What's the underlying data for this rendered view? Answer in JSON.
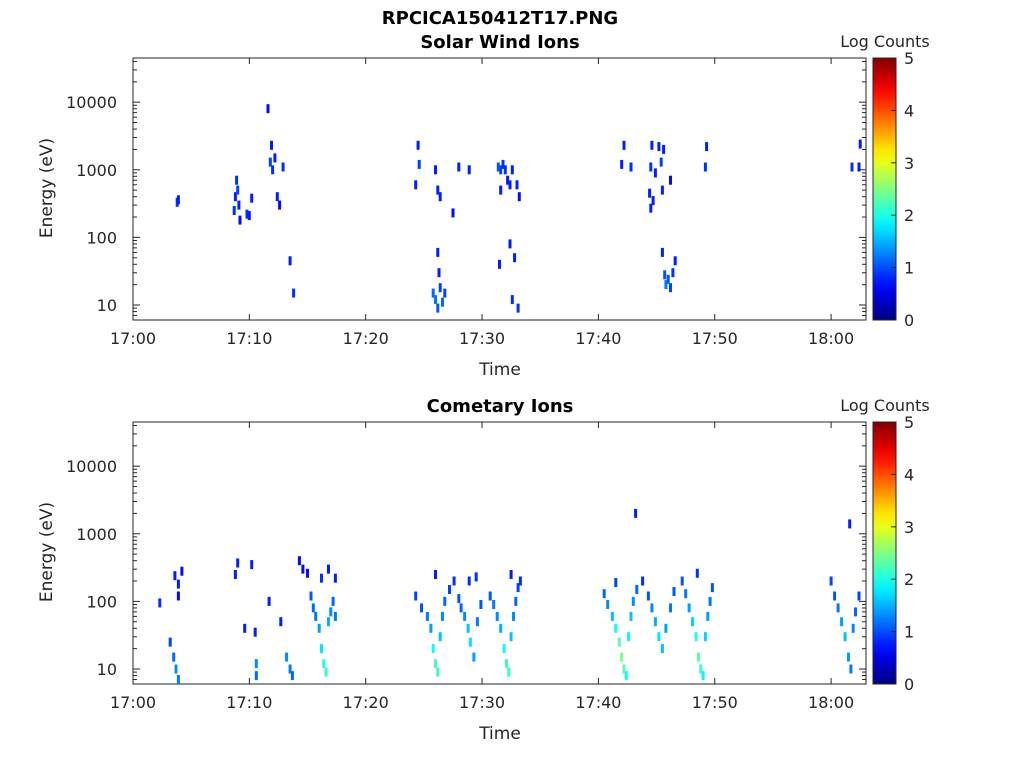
{
  "figure": {
    "title": "RPCICA150412T17.PNG",
    "colors": {
      "axis": "#262626",
      "background": "#ffffff",
      "colormap": "jet"
    }
  },
  "chart_data": [
    {
      "type": "heatmap",
      "title": "Solar Wind Ions",
      "xlabel": "Time",
      "ylabel": "Energy (eV)",
      "colorbar_label": "Log Counts",
      "x_tick_labels": [
        "17:00",
        "17:10",
        "17:20",
        "17:30",
        "17:40",
        "17:50",
        "18:00"
      ],
      "y_tick_labels": [
        "10",
        "100",
        "1000",
        "10000"
      ],
      "colorbar_ticks": [
        "0",
        "1",
        "2",
        "3",
        "4",
        "5"
      ],
      "y_scale": "log",
      "ylim": [
        6,
        45000
      ],
      "xlim_minutes_after_17_00": [
        0,
        63
      ],
      "clim": [
        0,
        5
      ],
      "cells": [
        [
          3.8,
          330,
          0.4
        ],
        [
          3.9,
          360,
          0.3
        ],
        [
          8.7,
          250,
          0.4
        ],
        [
          8.8,
          400,
          0.3
        ],
        [
          8.9,
          700,
          0.4
        ],
        [
          9.0,
          500,
          0.5
        ],
        [
          9.1,
          300,
          0.3
        ],
        [
          9.2,
          180,
          0.2
        ],
        [
          9.8,
          220,
          0.4
        ],
        [
          10.0,
          210,
          0.3
        ],
        [
          10.2,
          380,
          0.3
        ],
        [
          11.6,
          8000,
          0.2
        ],
        [
          11.8,
          1300,
          0.5
        ],
        [
          11.9,
          2300,
          0.3
        ],
        [
          12.0,
          1000,
          0.4
        ],
        [
          12.2,
          1500,
          0.3
        ],
        [
          12.4,
          400,
          0.3
        ],
        [
          12.6,
          300,
          0.2
        ],
        [
          12.9,
          1100,
          0.4
        ],
        [
          13.5,
          45,
          0.3
        ],
        [
          13.8,
          15,
          0.4
        ],
        [
          24.3,
          600,
          0.3
        ],
        [
          24.5,
          2300,
          0.3
        ],
        [
          24.6,
          1200,
          0.5
        ],
        [
          26.0,
          1000,
          0.3
        ],
        [
          26.2,
          500,
          0.3
        ],
        [
          26.4,
          400,
          0.3
        ],
        [
          27.5,
          230,
          0.2
        ],
        [
          28.0,
          1100,
          0.3
        ],
        [
          28.9,
          1000,
          0.3
        ],
        [
          25.8,
          15,
          0.7
        ],
        [
          26.0,
          12,
          0.8
        ],
        [
          26.2,
          9,
          0.6
        ],
        [
          26.4,
          18,
          0.5
        ],
        [
          26.6,
          11,
          0.7
        ],
        [
          26.8,
          15,
          0.5
        ],
        [
          26.2,
          60,
          0.3
        ],
        [
          26.3,
          30,
          0.3
        ],
        [
          31.4,
          1100,
          0.6
        ],
        [
          31.6,
          1000,
          0.5
        ],
        [
          31.8,
          1200,
          0.4
        ],
        [
          32.0,
          1000,
          0.4
        ],
        [
          32.2,
          700,
          0.3
        ],
        [
          31.6,
          500,
          0.3
        ],
        [
          32.4,
          600,
          0.3
        ],
        [
          32.6,
          1000,
          0.3
        ],
        [
          33.0,
          600,
          0.3
        ],
        [
          33.2,
          400,
          0.2
        ],
        [
          31.5,
          40,
          0.3
        ],
        [
          32.4,
          80,
          0.3
        ],
        [
          32.8,
          50,
          0.3
        ],
        [
          32.6,
          12,
          0.4
        ],
        [
          33.1,
          9,
          0.4
        ],
        [
          42.0,
          1200,
          0.3
        ],
        [
          42.2,
          2300,
          0.3
        ],
        [
          42.8,
          1100,
          0.4
        ],
        [
          44.5,
          1100,
          0.4
        ],
        [
          44.6,
          2300,
          0.3
        ],
        [
          45.2,
          2200,
          0.3
        ],
        [
          45.4,
          1300,
          0.5
        ],
        [
          45.6,
          2000,
          0.3
        ],
        [
          44.9,
          900,
          0.3
        ],
        [
          45.5,
          500,
          0.3
        ],
        [
          46.2,
          700,
          0.2
        ],
        [
          44.4,
          450,
          0.3
        ],
        [
          44.5,
          270,
          0.3
        ],
        [
          44.7,
          350,
          0.3
        ],
        [
          45.5,
          60,
          0.3
        ],
        [
          45.7,
          28,
          0.6
        ],
        [
          45.8,
          20,
          0.8
        ],
        [
          46.0,
          24,
          0.6
        ],
        [
          46.2,
          18,
          0.5
        ],
        [
          46.4,
          30,
          0.4
        ],
        [
          46.6,
          45,
          0.3
        ],
        [
          49.2,
          1100,
          0.4
        ],
        [
          49.3,
          2200,
          0.3
        ],
        [
          61.8,
          1100,
          0.4
        ],
        [
          62.4,
          1100,
          0.3
        ],
        [
          62.5,
          2400,
          0.3
        ]
      ]
    },
    {
      "type": "heatmap",
      "title": "Cometary Ions",
      "xlabel": "Time",
      "ylabel": "Energy (eV)",
      "colorbar_label": "Log Counts",
      "x_tick_labels": [
        "17:00",
        "17:10",
        "17:20",
        "17:30",
        "17:40",
        "17:50",
        "18:00"
      ],
      "y_tick_labels": [
        "10",
        "100",
        "1000",
        "10000"
      ],
      "colorbar_ticks": [
        "0",
        "1",
        "2",
        "3",
        "4",
        "5"
      ],
      "y_scale": "log",
      "ylim": [
        6,
        45000
      ],
      "xlim_minutes_after_17_00": [
        0,
        63
      ],
      "clim": [
        0,
        5
      ],
      "cells": [
        [
          2.3,
          95,
          0.4
        ],
        [
          3.6,
          240,
          0.3
        ],
        [
          3.9,
          180,
          0.3
        ],
        [
          4.2,
          280,
          0.2
        ],
        [
          3.9,
          120,
          0.2
        ],
        [
          3.2,
          25,
          0.5
        ],
        [
          3.5,
          15,
          0.7
        ],
        [
          3.7,
          10,
          0.9
        ],
        [
          3.9,
          7,
          0.8
        ],
        [
          8.8,
          250,
          0.3
        ],
        [
          9.0,
          370,
          0.3
        ],
        [
          10.2,
          350,
          0.3
        ],
        [
          9.6,
          40,
          0.3
        ],
        [
          10.5,
          35,
          0.3
        ],
        [
          10.6,
          12,
          0.9
        ],
        [
          10.6,
          8,
          0.7
        ],
        [
          11.7,
          100,
          0.3
        ],
        [
          12.7,
          50,
          0.3
        ],
        [
          13.2,
          15,
          0.9
        ],
        [
          13.5,
          10,
          0.8
        ],
        [
          13.7,
          8,
          0.7
        ],
        [
          14.3,
          400,
          0.2
        ],
        [
          14.6,
          300,
          0.2
        ],
        [
          15.0,
          260,
          0.2
        ],
        [
          15.3,
          120,
          0.6
        ],
        [
          15.5,
          80,
          0.7
        ],
        [
          15.7,
          60,
          0.8
        ],
        [
          16.0,
          40,
          1.0
        ],
        [
          16.2,
          20,
          1.4
        ],
        [
          16.4,
          12,
          1.7
        ],
        [
          16.6,
          9,
          1.8
        ],
        [
          16.8,
          50,
          1.1
        ],
        [
          17.0,
          70,
          0.9
        ],
        [
          17.2,
          100,
          0.7
        ],
        [
          17.4,
          60,
          0.8
        ],
        [
          16.2,
          220,
          0.4
        ],
        [
          16.8,
          300,
          0.3
        ],
        [
          17.4,
          220,
          0.3
        ],
        [
          24.3,
          120,
          0.5
        ],
        [
          24.8,
          80,
          0.6
        ],
        [
          25.3,
          60,
          0.8
        ],
        [
          25.6,
          40,
          1.0
        ],
        [
          25.8,
          20,
          1.6
        ],
        [
          26.0,
          12,
          1.9
        ],
        [
          26.2,
          9,
          1.8
        ],
        [
          26.4,
          30,
          1.2
        ],
        [
          26.6,
          60,
          0.9
        ],
        [
          26.8,
          100,
          0.7
        ],
        [
          27.2,
          150,
          0.5
        ],
        [
          27.6,
          200,
          0.4
        ],
        [
          26.0,
          250,
          0.3
        ],
        [
          28.0,
          110,
          0.6
        ],
        [
          28.2,
          80,
          0.7
        ],
        [
          28.5,
          60,
          0.9
        ],
        [
          28.8,
          40,
          1.2
        ],
        [
          29.0,
          25,
          1.4
        ],
        [
          29.3,
          15,
          1.0
        ],
        [
          29.6,
          50,
          0.8
        ],
        [
          29.9,
          90,
          0.6
        ],
        [
          28.9,
          200,
          0.4
        ],
        [
          29.5,
          230,
          0.4
        ],
        [
          30.7,
          120,
          0.6
        ],
        [
          31.0,
          90,
          0.8
        ],
        [
          31.3,
          60,
          0.9
        ],
        [
          31.6,
          40,
          1.1
        ],
        [
          31.9,
          20,
          1.6
        ],
        [
          32.1,
          12,
          1.9
        ],
        [
          32.3,
          9,
          1.8
        ],
        [
          32.5,
          30,
          1.2
        ],
        [
          32.7,
          60,
          0.9
        ],
        [
          32.9,
          100,
          0.7
        ],
        [
          33.1,
          160,
          0.5
        ],
        [
          33.3,
          200,
          0.4
        ],
        [
          32.5,
          250,
          0.3
        ],
        [
          40.5,
          130,
          0.7
        ],
        [
          40.8,
          90,
          0.9
        ],
        [
          41.2,
          60,
          1.2
        ],
        [
          41.5,
          40,
          1.6
        ],
        [
          41.8,
          25,
          2.0
        ],
        [
          42.0,
          15,
          2.2
        ],
        [
          42.2,
          10,
          2.0
        ],
        [
          42.4,
          8,
          1.6
        ],
        [
          42.6,
          30,
          1.5
        ],
        [
          42.8,
          60,
          1.2
        ],
        [
          43.0,
          100,
          0.9
        ],
        [
          43.3,
          150,
          0.7
        ],
        [
          41.5,
          190,
          0.5
        ],
        [
          43.8,
          200,
          0.4
        ],
        [
          44.3,
          120,
          0.6
        ],
        [
          44.6,
          80,
          0.9
        ],
        [
          44.9,
          50,
          1.1
        ],
        [
          45.2,
          30,
          1.4
        ],
        [
          45.5,
          20,
          1.2
        ],
        [
          45.8,
          40,
          1.0
        ],
        [
          46.2,
          80,
          0.8
        ],
        [
          46.5,
          140,
          0.6
        ],
        [
          47.2,
          200,
          0.6
        ],
        [
          47.5,
          130,
          0.8
        ],
        [
          47.8,
          80,
          1.0
        ],
        [
          48.1,
          50,
          1.3
        ],
        [
          48.4,
          30,
          1.7
        ],
        [
          48.6,
          15,
          2.0
        ],
        [
          48.8,
          10,
          1.8
        ],
        [
          49.0,
          8,
          1.5
        ],
        [
          49.2,
          30,
          1.3
        ],
        [
          49.4,
          60,
          1.0
        ],
        [
          49.6,
          100,
          0.8
        ],
        [
          49.8,
          160,
          0.6
        ],
        [
          48.5,
          260,
          0.4
        ],
        [
          43.2,
          2000,
          0.3
        ],
        [
          61.6,
          1400,
          0.3
        ],
        [
          60.0,
          200,
          0.5
        ],
        [
          60.3,
          120,
          0.6
        ],
        [
          60.6,
          80,
          0.8
        ],
        [
          60.9,
          50,
          1.0
        ],
        [
          61.2,
          30,
          1.2
        ],
        [
          61.5,
          15,
          1.0
        ],
        [
          61.7,
          10,
          0.8
        ],
        [
          61.9,
          40,
          0.9
        ],
        [
          62.1,
          70,
          0.7
        ],
        [
          62.4,
          120,
          0.5
        ]
      ]
    }
  ]
}
